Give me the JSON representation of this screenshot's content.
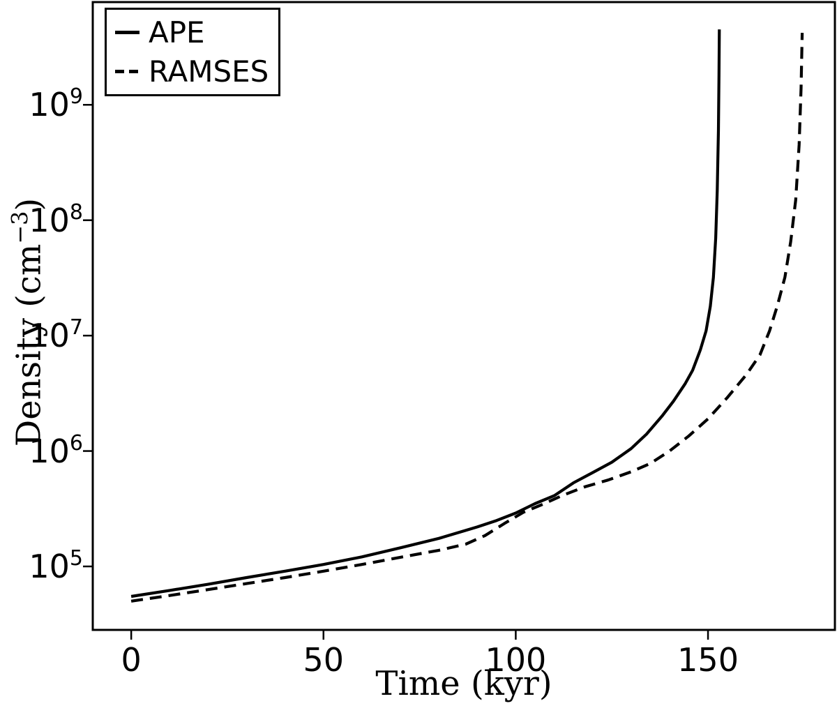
{
  "figure": {
    "background_color": "#ffffff",
    "foreground_color": "#000000"
  },
  "chart_data": {
    "type": "line",
    "title": "",
    "xlabel": "Time (kyr)",
    "ylabel": "Density (cm⁻³)",
    "ylabel_parts": {
      "pre": "Density (cm",
      "sup": "−3",
      "post": ")"
    },
    "x_ticks": [
      0,
      50,
      100,
      150
    ],
    "y_tick_base": "10",
    "y_tick_exponents": [
      5,
      6,
      7,
      8,
      9
    ],
    "xlim": [
      -10,
      183
    ],
    "ylim_log10": [
      4.45,
      9.89
    ],
    "y_scale": "log",
    "grid": false,
    "legend_position": "upper left",
    "line_color": "#000000",
    "series": [
      {
        "name": "APE",
        "style": "solid",
        "points": [
          [
            0,
            55000
          ],
          [
            10,
            62000
          ],
          [
            20,
            70000
          ],
          [
            30,
            80000
          ],
          [
            40,
            91000
          ],
          [
            50,
            104000
          ],
          [
            60,
            121000
          ],
          [
            70,
            145000
          ],
          [
            80,
            175000
          ],
          [
            90,
            220000
          ],
          [
            95,
            250000
          ],
          [
            100,
            290000
          ],
          [
            105,
            350000
          ],
          [
            110,
            410000
          ],
          [
            115,
            530000
          ],
          [
            120,
            650000
          ],
          [
            125,
            800000
          ],
          [
            130,
            1050000
          ],
          [
            134,
            1400000
          ],
          [
            138,
            2000000
          ],
          [
            141,
            2700000
          ],
          [
            144,
            3800000
          ],
          [
            146,
            5000000
          ],
          [
            148,
            7500000
          ],
          [
            149.5,
            11000000
          ],
          [
            150.6,
            18000000
          ],
          [
            151.4,
            32000000
          ],
          [
            152.0,
            70000000
          ],
          [
            152.4,
            180000000
          ],
          [
            152.7,
            600000000
          ],
          [
            152.85,
            1800000000
          ],
          [
            152.95,
            4500000000
          ]
        ]
      },
      {
        "name": "RAMSES",
        "style": "dashed",
        "points": [
          [
            0,
            50000
          ],
          [
            10,
            56000
          ],
          [
            20,
            63000
          ],
          [
            30,
            71000
          ],
          [
            40,
            80000
          ],
          [
            50,
            91000
          ],
          [
            60,
            104000
          ],
          [
            70,
            120000
          ],
          [
            80,
            138000
          ],
          [
            87,
            156000
          ],
          [
            92,
            185000
          ],
          [
            97,
            235000
          ],
          [
            102,
            295000
          ],
          [
            107,
            345000
          ],
          [
            112,
            410000
          ],
          [
            118,
            490000
          ],
          [
            124,
            560000
          ],
          [
            130,
            660000
          ],
          [
            135,
            780000
          ],
          [
            140,
            1000000
          ],
          [
            145,
            1350000
          ],
          [
            150,
            1900000
          ],
          [
            155,
            2900000
          ],
          [
            160,
            4600000
          ],
          [
            163.5,
            6800000
          ],
          [
            166,
            11000000
          ],
          [
            168,
            18000000
          ],
          [
            170,
            32000000
          ],
          [
            171.5,
            65000000
          ],
          [
            172.8,
            150000000
          ],
          [
            173.7,
            450000000
          ],
          [
            174.2,
            1400000000
          ],
          [
            174.5,
            4200000000
          ]
        ]
      }
    ]
  },
  "legend": {
    "entries": [
      {
        "label": "APE",
        "sample": "solid-line"
      },
      {
        "label": "RAMSES",
        "sample": "dashed-line"
      }
    ]
  }
}
